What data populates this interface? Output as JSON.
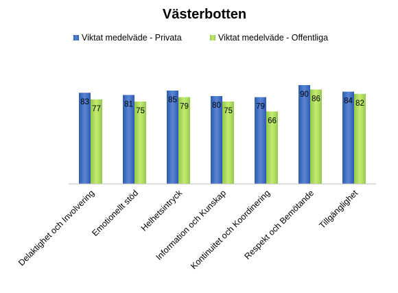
{
  "chart_data": {
    "type": "bar",
    "title": "Västerbotten",
    "categories": [
      "Delaktighet och Involvering",
      "Emotionellt stöd",
      "Helhetsintryck",
      "Information och Kunskap",
      "Kontinuitet och Koordinering",
      "Respekt och Bemötande",
      "Tillgänglighet"
    ],
    "series": [
      {
        "name": "Viktat medelväde - Privata",
        "color": "#4472C4",
        "values": [
          83,
          81,
          85,
          80,
          79,
          90,
          84
        ]
      },
      {
        "name": "Viktat medelväde - Offentliga",
        "color": "#A9D65A",
        "values": [
          77,
          75,
          79,
          75,
          66,
          86,
          82
        ]
      }
    ],
    "ylim": [
      0,
      100
    ],
    "grid": false,
    "legend": "top",
    "data_labels": true
  }
}
